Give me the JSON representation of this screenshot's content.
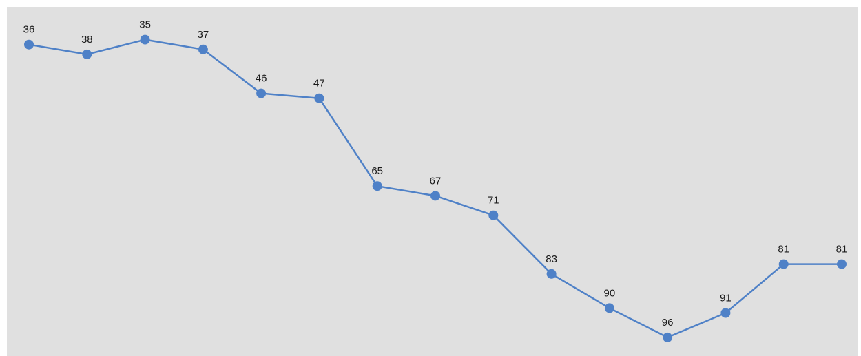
{
  "chart_data": {
    "type": "line",
    "title": "",
    "xlabel": "",
    "ylabel": "",
    "x": [
      1,
      2,
      3,
      4,
      5,
      6,
      7,
      8,
      9,
      10,
      11,
      12,
      13,
      14,
      15
    ],
    "series": [
      {
        "values": [
          36,
          38,
          35,
          37,
          46,
          47,
          65,
          67,
          71,
          83,
          90,
          96,
          91,
          81,
          81
        ],
        "color": "#4f81c7"
      }
    ],
    "y_direction": "inverted",
    "ylim": [
      33.5,
      97
    ],
    "grid": false,
    "legend": "none",
    "data_labels": true,
    "background_color": "#e0e0e0"
  }
}
